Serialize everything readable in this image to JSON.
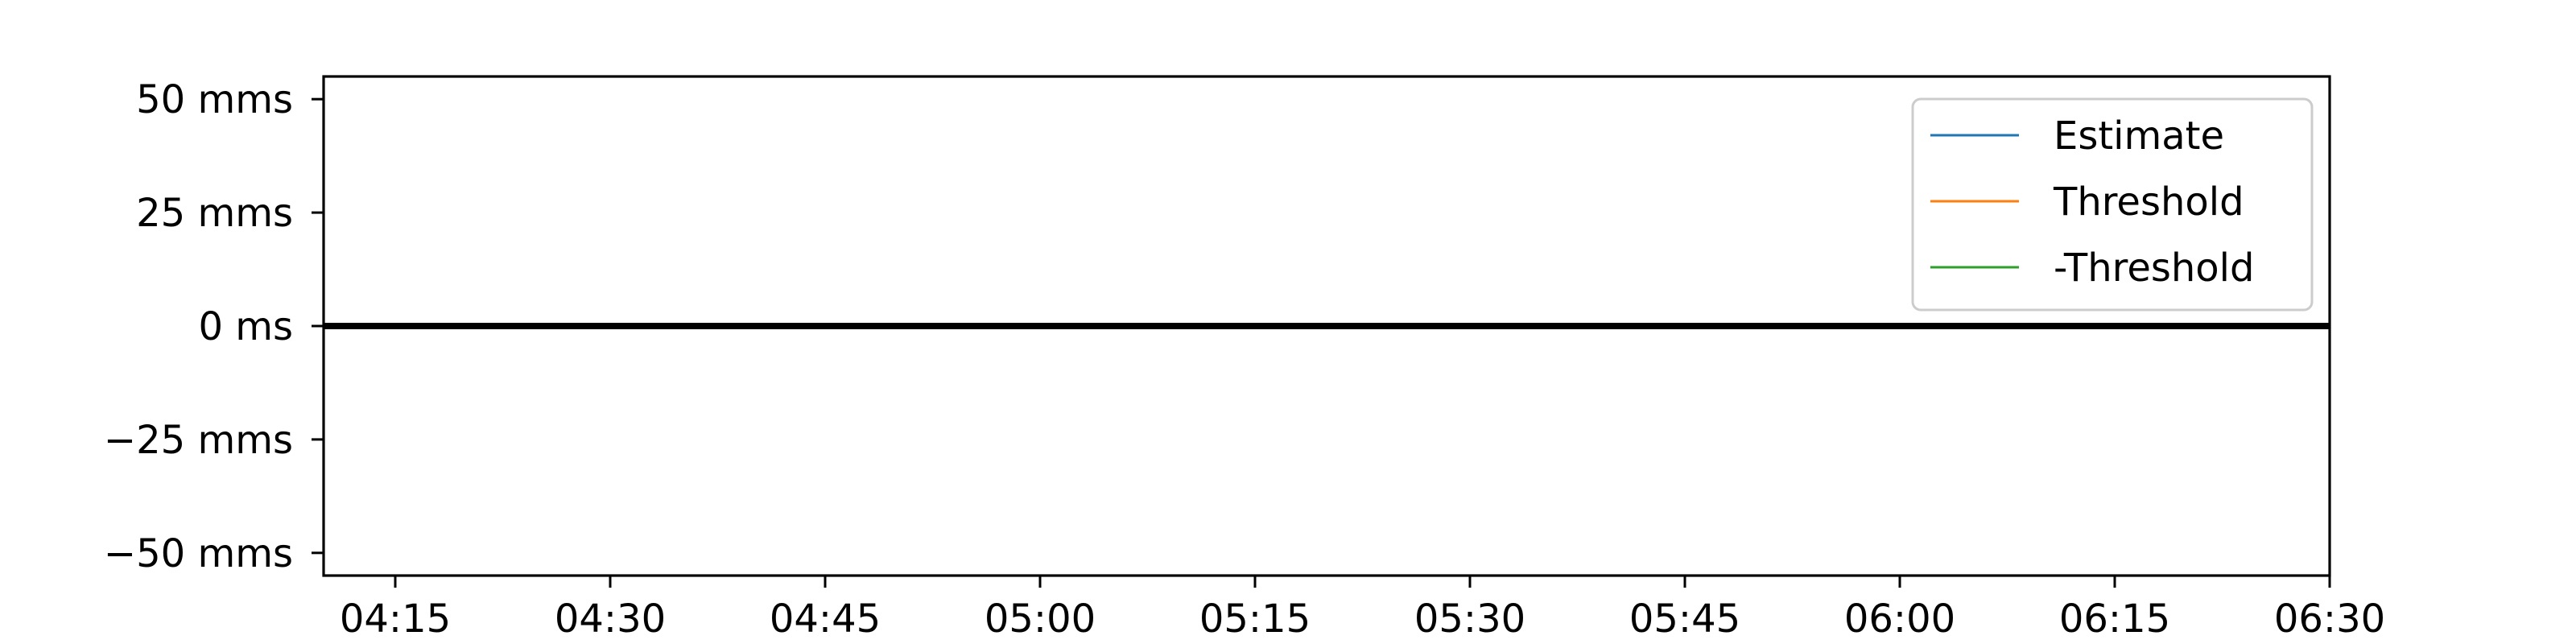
{
  "chart_data": {
    "type": "line",
    "title": "",
    "xlabel": "",
    "ylabel": "",
    "x_axis": {
      "kind": "time",
      "ticks": [
        "04:15",
        "04:30",
        "04:45",
        "05:00",
        "05:15",
        "05:30",
        "05:45",
        "06:00",
        "06:15",
        "06:30"
      ],
      "range": [
        "04:10",
        "06:30"
      ]
    },
    "y_axis": {
      "unit": "ms",
      "ticks": [
        {
          "value": 50,
          "label": "50 mms"
        },
        {
          "value": 25,
          "label": "25 mms"
        },
        {
          "value": 0,
          "label": "0 ms"
        },
        {
          "value": -25,
          "label": "−25 mms"
        },
        {
          "value": -50,
          "label": "−50 mms"
        }
      ],
      "range": [
        -55,
        55
      ]
    },
    "reference_lines": [
      {
        "axis": "y",
        "value": 0,
        "color": "#000000"
      }
    ],
    "series": [
      {
        "name": "Estimate",
        "color": "#1f77b4",
        "x": [],
        "y": []
      },
      {
        "name": "Threshold",
        "color": "#ff7f0e",
        "x": [],
        "y": []
      },
      {
        "name": "-Threshold",
        "color": "#2ca02c",
        "x": [],
        "y": []
      }
    ],
    "legend": {
      "position": "top-right"
    },
    "grid": false
  }
}
